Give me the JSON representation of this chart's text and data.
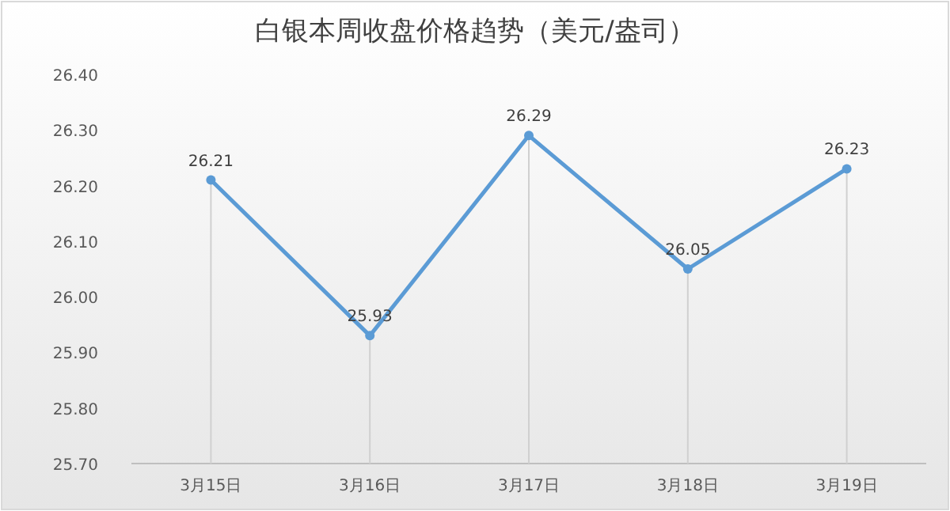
{
  "chart_data": {
    "type": "line",
    "title": "白银本周收盘价格趋势（美元/盎司）",
    "categories": [
      "3月15日",
      "3月16日",
      "3月17日",
      "3月18日",
      "3月19日"
    ],
    "values": [
      26.21,
      25.93,
      26.29,
      26.05,
      26.23
    ],
    "color": "#5b9bd5",
    "ylim": [
      25.7,
      26.4
    ],
    "yticks": [
      {
        "value": 25.7,
        "label": "25.70"
      },
      {
        "value": 25.8,
        "label": "25.80"
      },
      {
        "value": 25.9,
        "label": "25.90"
      },
      {
        "value": 26.0,
        "label": "26.00"
      },
      {
        "value": 26.1,
        "label": "26.10"
      },
      {
        "value": 26.2,
        "label": "26.20"
      },
      {
        "value": 26.3,
        "label": "26.30"
      },
      {
        "value": 26.4,
        "label": "26.40"
      }
    ],
    "grid": "x",
    "marker": "circle",
    "line_style": "solid",
    "data_labels": true
  }
}
